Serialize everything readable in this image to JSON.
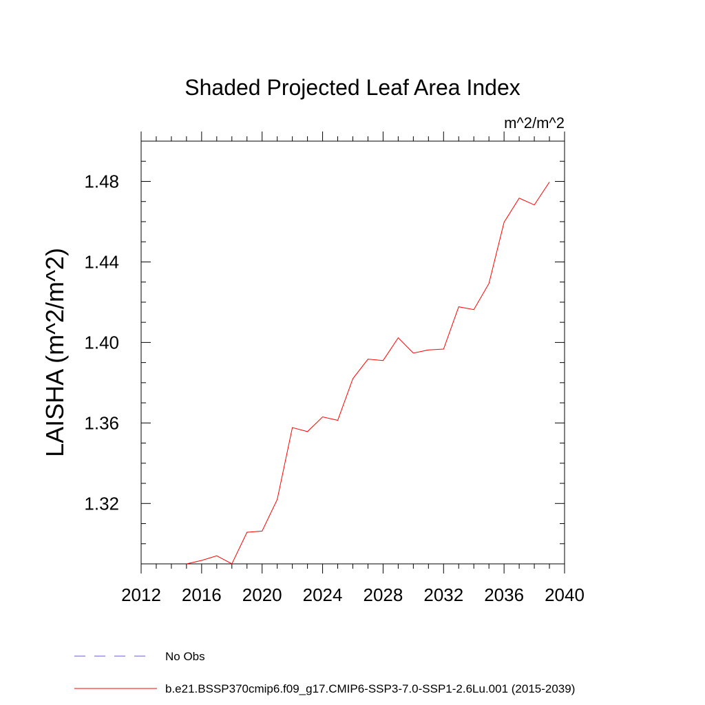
{
  "chart_data": {
    "type": "line",
    "title": "Shaded Projected Leaf Area Index",
    "units_label": "m^2/m^2",
    "ylabel": "LAISHA  (m^2/m^2)",
    "xlabel": "",
    "xlim": [
      2012,
      2040
    ],
    "ylim": [
      1.29,
      1.5
    ],
    "x_ticks": [
      2012,
      2016,
      2020,
      2024,
      2028,
      2032,
      2036,
      2040
    ],
    "x_tick_labels": [
      "2012",
      "2016",
      "2020",
      "2024",
      "2028",
      "2032",
      "2036",
      "2040"
    ],
    "y_ticks": [
      1.32,
      1.36,
      1.4,
      1.44,
      1.48
    ],
    "y_tick_labels": [
      "1.32",
      "1.36",
      "1.40",
      "1.44",
      "1.48"
    ],
    "grid": false,
    "legend_position": "bottom",
    "series": [
      {
        "name": "b.e21.BSSP370cmip6.f09_g17.CMIP6-SSP3-7.0-SSP1-2.6Lu.001 (2015-2039)",
        "color": "#ff0000",
        "style": "solid",
        "x": [
          2015,
          2016,
          2017,
          2018,
          2019,
          2020,
          2021,
          2022,
          2023,
          2024,
          2025,
          2026,
          2027,
          2028,
          2029,
          2030,
          2031,
          2032,
          2033,
          2034,
          2035,
          2036,
          2037,
          2038,
          2039
        ],
        "y": [
          1.29,
          1.2917,
          1.294,
          1.29,
          1.3057,
          1.3063,
          1.322,
          1.3577,
          1.3557,
          1.363,
          1.3613,
          1.382,
          1.3917,
          1.391,
          1.4023,
          1.3947,
          1.3963,
          1.3967,
          1.4177,
          1.4163,
          1.4293,
          1.4597,
          1.4717,
          1.4683,
          1.4797
        ]
      },
      {
        "name": "No Obs",
        "color": "#6a5acd",
        "style": "dashed",
        "x": [],
        "y": []
      }
    ]
  }
}
